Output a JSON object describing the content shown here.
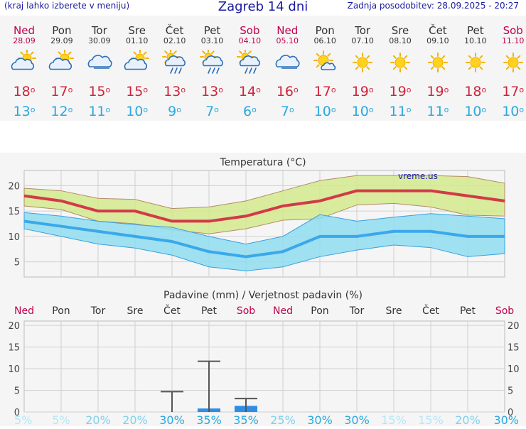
{
  "header": {
    "note": "(kraj lahko izberete v meniju)",
    "title": "Zagreb 14 dni",
    "updated": "Zadnja posodobitev: 28.09.2025 - 20:27"
  },
  "days": [
    {
      "name": "Ned",
      "date": "28.09",
      "weekend": true,
      "icon": "partly-sunny-cloud-icon",
      "max": "18",
      "min": "13"
    },
    {
      "name": "Pon",
      "date": "29.09",
      "weekend": false,
      "icon": "partly-sunny-cloud-icon",
      "max": "17",
      "min": "12"
    },
    {
      "name": "Tor",
      "date": "30.09",
      "weekend": false,
      "icon": "cloud-icon",
      "max": "15",
      "min": "11"
    },
    {
      "name": "Sre",
      "date": "01.10",
      "weekend": false,
      "icon": "partly-sunny-cloud-icon",
      "max": "15",
      "min": "10"
    },
    {
      "name": "Čet",
      "date": "02.10",
      "weekend": false,
      "icon": "sun-rain-cloud-icon",
      "max": "13",
      "min": "9"
    },
    {
      "name": "Pet",
      "date": "03.10",
      "weekend": false,
      "icon": "sun-rain-cloud-icon",
      "max": "13",
      "min": "7"
    },
    {
      "name": "Sob",
      "date": "04.10",
      "weekend": true,
      "icon": "sun-rain-cloud-icon",
      "max": "14",
      "min": "6"
    },
    {
      "name": "Ned",
      "date": "05.10",
      "weekend": true,
      "icon": "cloud-icon",
      "max": "16",
      "min": "7"
    },
    {
      "name": "Pon",
      "date": "06.10",
      "weekend": false,
      "icon": "sun-small-cloud-icon",
      "max": "17",
      "min": "10"
    },
    {
      "name": "Tor",
      "date": "07.10",
      "weekend": false,
      "icon": "sun-icon",
      "max": "19",
      "min": "10"
    },
    {
      "name": "Sre",
      "date": "08.10",
      "weekend": false,
      "icon": "sun-icon",
      "max": "19",
      "min": "11"
    },
    {
      "name": "Čet",
      "date": "09.10",
      "weekend": false,
      "icon": "sun-icon",
      "max": "19",
      "min": "11"
    },
    {
      "name": "Pet",
      "date": "10.10",
      "weekend": false,
      "icon": "sun-icon",
      "max": "18",
      "min": "10"
    },
    {
      "name": "Sob",
      "date": "11.10",
      "weekend": true,
      "icon": "sun-icon",
      "max": "17",
      "min": "10"
    }
  ],
  "deg_symbol": "o",
  "colors": {
    "max": "#d0243c",
    "min": "#29a9e1",
    "weekend": "#c0004e",
    "max_band": "#d4e98c",
    "min_band": "#8fdcf0",
    "precip_bar": "#2f8de4",
    "title_blue": "#1a1aa0"
  },
  "chart_data": [
    {
      "type": "line",
      "title": "Temperatura (°C)",
      "watermark": "vreme.us",
      "x": [
        "Ned",
        "Pon",
        "Tor",
        "Sre",
        "Čet",
        "Pet",
        "Sob",
        "Ned",
        "Pon",
        "Tor",
        "Sre",
        "Čet",
        "Pet",
        "Sob"
      ],
      "ylim": [
        2,
        23
      ],
      "yticks": [
        "5",
        "10",
        "15",
        "20"
      ],
      "series": [
        {
          "name": "max",
          "values": [
            18,
            17,
            15,
            15,
            13,
            13,
            14,
            16,
            17,
            19,
            19,
            19,
            18,
            17
          ]
        },
        {
          "name": "min",
          "values": [
            13,
            12,
            11,
            10,
            9,
            7,
            6,
            7,
            10,
            10,
            11,
            11,
            10,
            10
          ]
        }
      ],
      "max_band": {
        "upper": [
          19.5,
          19,
          17.5,
          17.3,
          15.5,
          15.8,
          17,
          19,
          21,
          22,
          22,
          22,
          21.8,
          20.5
        ],
        "lower": [
          16,
          15.3,
          13,
          12.5,
          11.3,
          10.5,
          11.5,
          13.2,
          13.5,
          16.2,
          16.5,
          15.8,
          14.2,
          14
        ]
      },
      "min_band": {
        "upper": [
          14.7,
          14,
          13,
          12.3,
          11.8,
          10,
          8.5,
          10,
          14.3,
          13,
          13.8,
          14.5,
          14,
          13.5
        ],
        "lower": [
          11.5,
          10,
          8.5,
          7.7,
          6.3,
          4,
          3.2,
          4,
          6,
          7.3,
          8.3,
          7.8,
          6,
          6.6
        ]
      },
      "grid": true
    },
    {
      "type": "bar",
      "title": "Padavine (mm) / Verjetnost padavin (%)",
      "categories": [
        "Ned",
        "Pon",
        "Tor",
        "Sre",
        "Čet",
        "Pet",
        "Sob",
        "Ned",
        "Pon",
        "Tor",
        "Sre",
        "Čet",
        "Pet",
        "Sob"
      ],
      "ylim": [
        0,
        21
      ],
      "yticks": [
        "0",
        "5",
        "10",
        "15",
        "20"
      ],
      "values": [
        0,
        0,
        0,
        0,
        0,
        0.8,
        1.4,
        0,
        0,
        0,
        0,
        0,
        0,
        0
      ],
      "error_high": [
        null,
        null,
        null,
        null,
        4.7,
        11.7,
        3.1,
        null,
        null,
        null,
        null,
        null,
        null,
        null
      ],
      "probability": [
        "5%",
        "5%",
        "20%",
        "20%",
        "30%",
        "35%",
        "35%",
        "25%",
        "30%",
        "30%",
        "15%",
        "15%",
        "20%",
        "30%"
      ],
      "prob_values": [
        5,
        5,
        20,
        20,
        30,
        35,
        35,
        25,
        30,
        30,
        15,
        15,
        20,
        30
      ],
      "grid": true
    }
  ]
}
